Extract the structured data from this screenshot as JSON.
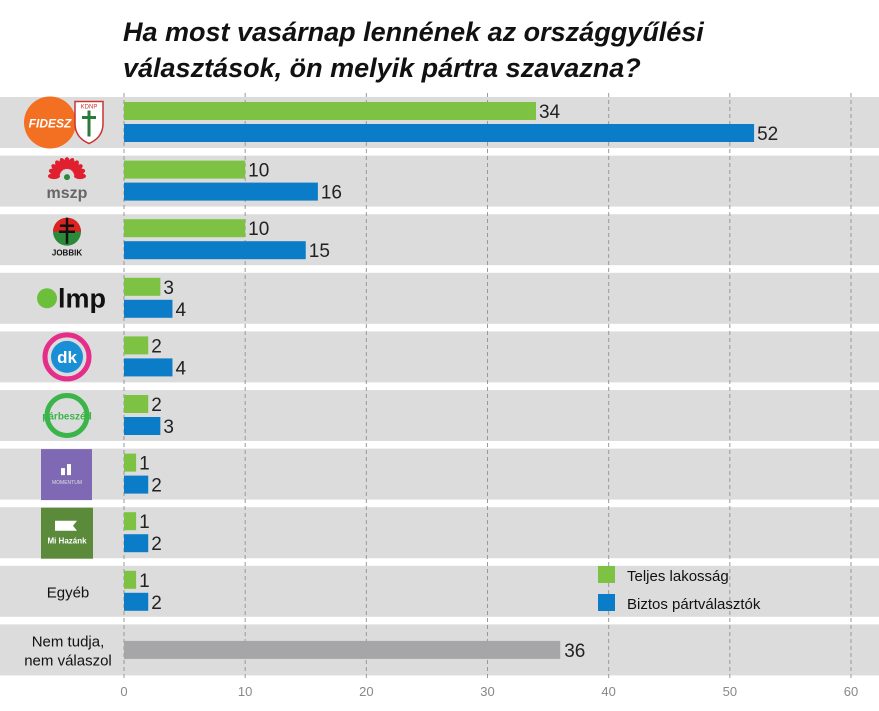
{
  "title": [
    "Ha most vasárnap lennének az országgyűlési",
    "választások, ön melyik pártra szavazna?"
  ],
  "chart_data": {
    "type": "bar",
    "orientation": "horizontal",
    "title": "Ha most vasárnap lennének az országgyűlési választások, ön melyik pártra szavazna?",
    "categories": [
      "FIDESZ KDNP",
      "mszp",
      "JOBBIK",
      "lmp",
      "dk",
      "párbeszéd",
      "MOMENTUM",
      "Mi Hazánk",
      "Egyéb",
      "Nem tudja, nem válaszol"
    ],
    "category_labels_shown_as_logos": [
      true,
      true,
      true,
      true,
      true,
      true,
      true,
      true,
      false,
      false
    ],
    "text_labels": {
      "Egyéb": [
        "Egyéb"
      ],
      "Nem tudja, nem válaszol": [
        "Nem tudja,",
        "nem válaszol"
      ]
    },
    "series": [
      {
        "name": "Teljes lakosság",
        "color": "#7dc242",
        "values": [
          34,
          10,
          10,
          3,
          2,
          2,
          1,
          1,
          1,
          null
        ]
      },
      {
        "name": "Biztos pártválasztók",
        "color": "#0a7cc8",
        "values": [
          52,
          16,
          15,
          4,
          4,
          3,
          2,
          2,
          2,
          null
        ]
      },
      {
        "color": "#a6a6a8",
        "values": [
          null,
          null,
          null,
          null,
          null,
          null,
          null,
          null,
          null,
          36
        ]
      }
    ],
    "xlim": [
      0,
      60
    ],
    "xticks": [
      0,
      10,
      20,
      30,
      40,
      50,
      60
    ],
    "grid": "vertical dashed",
    "legend": "bottom-right",
    "colors": {
      "row_band": "#dcdcdc",
      "grid": "#999999"
    }
  }
}
